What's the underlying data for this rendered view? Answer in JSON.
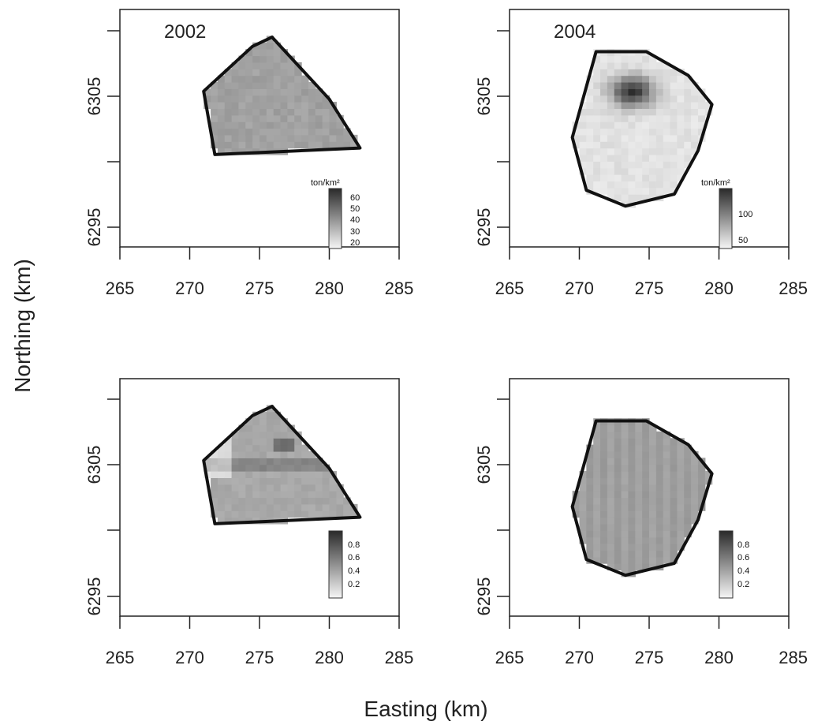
{
  "chart_data": {
    "type": "heatmap",
    "xlabel": "Easting (km)",
    "ylabel": "Northing (km)",
    "x_ticks": [
      "265",
      "270",
      "275",
      "280",
      "285"
    ],
    "y_ticks": [
      "6295",
      "6305"
    ],
    "xlim": [
      265,
      285
    ],
    "ylim": [
      6293.5,
      6311.5
    ],
    "grid": false,
    "panels": [
      {
        "id": "2002-density",
        "title": "2002",
        "legend_title": "ton/km²",
        "legend_ticks": [
          "60",
          "50",
          "40",
          "30",
          "20"
        ],
        "legend_position": "bottom-right",
        "boundary": [
          [
            271.0,
            6305.3
          ],
          [
            274.5,
            6308.7
          ],
          [
            275.9,
            6309.4
          ],
          [
            280.0,
            6304.7
          ],
          [
            282.2,
            6301.0
          ],
          [
            271.8,
            6300.5
          ]
        ]
      },
      {
        "id": "2004-density",
        "title": "2004",
        "legend_title": "ton/km²",
        "legend_ticks": [
          "100",
          "50"
        ],
        "legend_position": "bottom-right",
        "boundary": [
          [
            271.2,
            6308.3
          ],
          [
            274.8,
            6308.3
          ],
          [
            277.8,
            6306.5
          ],
          [
            279.5,
            6304.3
          ],
          [
            278.5,
            6300.8
          ],
          [
            276.8,
            6297.5
          ],
          [
            273.3,
            6296.6
          ],
          [
            270.5,
            6297.8
          ],
          [
            269.5,
            6301.8
          ]
        ]
      },
      {
        "id": "2002-probability",
        "title": "",
        "legend_title": "",
        "legend_ticks": [
          "0.8",
          "0.6",
          "0.4",
          "0.2"
        ],
        "legend_position": "bottom-right",
        "boundary": [
          [
            271.0,
            6305.3
          ],
          [
            274.5,
            6308.7
          ],
          [
            275.9,
            6309.4
          ],
          [
            280.0,
            6304.7
          ],
          [
            282.2,
            6301.0
          ],
          [
            271.8,
            6300.5
          ]
        ]
      },
      {
        "id": "2004-probability",
        "title": "",
        "legend_title": "",
        "legend_ticks": [
          "0.8",
          "0.6",
          "0.4",
          "0.2"
        ],
        "legend_position": "bottom-right",
        "boundary": [
          [
            271.2,
            6308.3
          ],
          [
            274.8,
            6308.3
          ],
          [
            277.8,
            6306.5
          ],
          [
            279.5,
            6304.3
          ],
          [
            278.5,
            6300.8
          ],
          [
            276.8,
            6297.5
          ],
          [
            273.3,
            6296.6
          ],
          [
            270.5,
            6297.8
          ],
          [
            269.5,
            6301.8
          ]
        ]
      }
    ]
  }
}
